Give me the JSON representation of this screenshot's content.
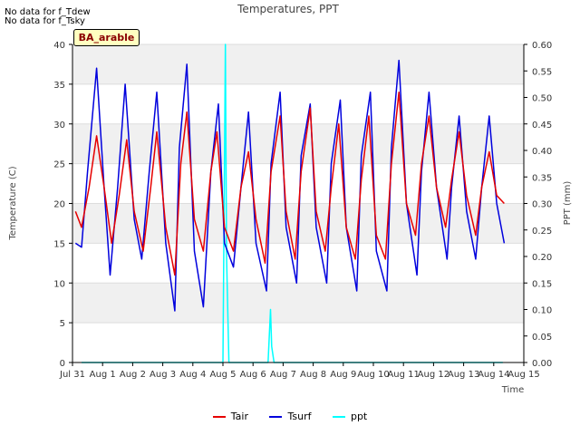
{
  "notes": [
    "No data for f_Tdew",
    "No data for f_Tsky"
  ],
  "site_label": "BA_arable",
  "colors": {
    "Tair": "#e60000",
    "Tsurf": "#0000dd",
    "ppt": "#00ffff",
    "band": "#f0f0f0",
    "grid": "#dddddd"
  },
  "chart_data": {
    "type": "line",
    "title": "Temperatures, PPT",
    "xlabel": "Time",
    "ylabel": "Temperature (C)",
    "ylabel_right": "PPT (mm)",
    "xlim": [
      0,
      15
    ],
    "ylim": [
      0,
      40
    ],
    "ylim_right": [
      0,
      0.6
    ],
    "x_ticks": [
      0,
      1,
      2,
      3,
      4,
      5,
      6,
      7,
      8,
      9,
      10,
      11,
      12,
      13,
      14,
      15
    ],
    "x_tick_labels": [
      "Jul 31",
      "Aug 1",
      "Aug 2",
      "Aug 3",
      "Aug 4",
      "Aug 5",
      "Aug 6",
      "Aug 7",
      "Aug 8",
      "Aug 9",
      "Aug 10",
      "Aug 11",
      "Aug 12",
      "Aug 13",
      "Aug 14",
      "Aug 15"
    ],
    "y_ticks": [
      0,
      5,
      10,
      15,
      20,
      25,
      30,
      35,
      40
    ],
    "y_ticks_right": [
      "0.00",
      "0.05",
      "0.10",
      "0.15",
      "0.20",
      "0.25",
      "0.30",
      "0.35",
      "0.40",
      "0.45",
      "0.50",
      "0.55",
      "0.60"
    ],
    "legend": [
      "Tair",
      "Tsurf",
      "ppt"
    ],
    "legend_position": "bottom",
    "series": [
      {
        "name": "Tair",
        "axis": "left",
        "x": [
          0.1,
          0.3,
          0.55,
          0.8,
          1.05,
          1.3,
          1.55,
          1.8,
          2.05,
          2.35,
          2.6,
          2.8,
          3.1,
          3.4,
          3.6,
          3.8,
          4.05,
          4.35,
          4.6,
          4.8,
          5.05,
          5.35,
          5.6,
          5.85,
          6.1,
          6.4,
          6.6,
          6.9,
          7.1,
          7.4,
          7.6,
          7.9,
          8.1,
          8.4,
          8.6,
          8.85,
          9.1,
          9.4,
          9.6,
          9.85,
          10.1,
          10.4,
          10.6,
          10.85,
          11.1,
          11.4,
          11.6,
          11.85,
          12.1,
          12.4,
          12.6,
          12.85,
          13.1,
          13.4,
          13.6,
          13.85,
          14.1,
          14.35
        ],
        "y": [
          19,
          17,
          22,
          28.5,
          22,
          15,
          21,
          28,
          19,
          14,
          22,
          29,
          17,
          11,
          25,
          31.5,
          18,
          14,
          24,
          29,
          17,
          14,
          22,
          26.5,
          18,
          12.5,
          24,
          31,
          19,
          13,
          24,
          32,
          19,
          14,
          22,
          30,
          17,
          13,
          23,
          31,
          16,
          13,
          25,
          34,
          20,
          16,
          25,
          31,
          22,
          17,
          23,
          29,
          21,
          16,
          22,
          26.5,
          21,
          20
        ]
      },
      {
        "name": "Tsurf",
        "axis": "left",
        "x": [
          0.1,
          0.3,
          0.5,
          0.8,
          1.05,
          1.25,
          1.5,
          1.75,
          2.05,
          2.3,
          2.55,
          2.8,
          3.1,
          3.4,
          3.55,
          3.8,
          4.05,
          4.35,
          4.6,
          4.85,
          5.05,
          5.35,
          5.6,
          5.85,
          6.1,
          6.45,
          6.6,
          6.9,
          7.1,
          7.45,
          7.6,
          7.9,
          8.1,
          8.45,
          8.6,
          8.9,
          9.1,
          9.45,
          9.6,
          9.9,
          10.1,
          10.45,
          10.6,
          10.85,
          11.1,
          11.45,
          11.6,
          11.85,
          12.1,
          12.45,
          12.6,
          12.85,
          13.1,
          13.4,
          13.6,
          13.85,
          14.1,
          14.35
        ],
        "y": [
          15,
          14.5,
          24,
          37,
          22,
          11,
          22,
          35,
          18,
          13,
          24,
          34,
          15,
          6.5,
          27,
          37.5,
          14,
          7,
          24,
          32.5,
          15,
          12,
          22,
          31.5,
          15,
          9,
          25,
          34,
          17,
          10,
          26,
          32.5,
          17,
          10,
          25,
          33,
          17,
          9,
          26,
          34,
          14,
          9,
          27,
          38,
          20,
          11,
          24,
          34,
          22,
          13,
          22,
          31,
          19,
          13,
          22,
          31,
          20,
          15
        ]
      },
      {
        "name": "ppt",
        "axis": "right",
        "x": [
          0.3,
          5.0,
          5.08,
          5.12,
          5.2,
          6.5,
          6.58,
          6.62,
          6.7,
          14.3
        ],
        "y": [
          0,
          0,
          0.6,
          0.2,
          0,
          0,
          0.1,
          0.03,
          0,
          0
        ]
      }
    ]
  }
}
